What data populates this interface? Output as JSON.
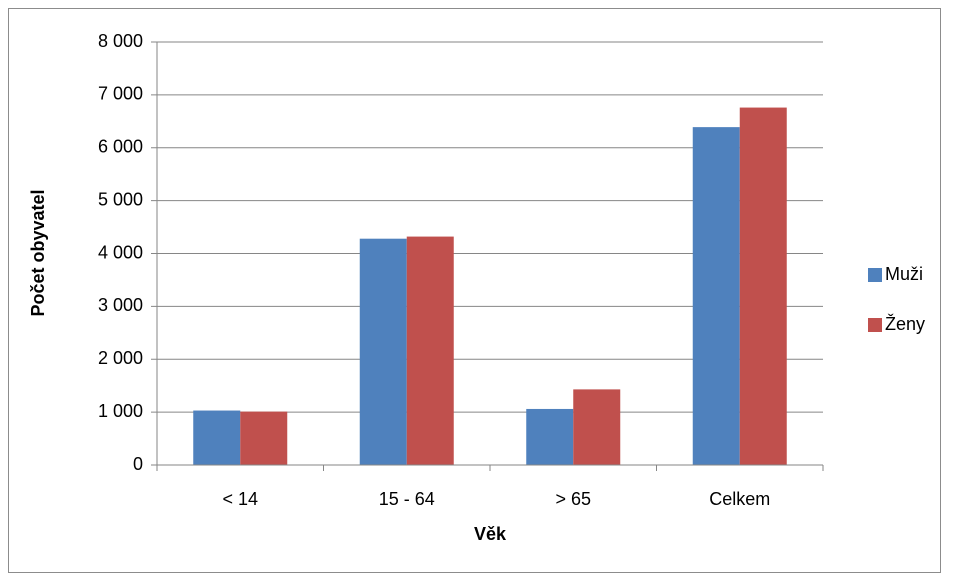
{
  "chart_data": {
    "type": "bar",
    "categories": [
      "< 14",
      "15 - 64",
      "> 65",
      "Celkem"
    ],
    "series": [
      {
        "name": "Muži",
        "values": [
          1030,
          4280,
          1060,
          6390
        ],
        "color": "#4f81bd"
      },
      {
        "name": "Ženy",
        "values": [
          1010,
          4320,
          1430,
          6760
        ],
        "color": "#c0504d"
      }
    ],
    "y_ticks": [
      "0",
      "1 000",
      "2 000",
      "3 000",
      "4 000",
      "5 000",
      "6 000",
      "7 000",
      "8 000"
    ],
    "ylim": [
      0,
      8000
    ],
    "ylabel": "Počet obyvatel",
    "xlabel": "Věk",
    "grid": true,
    "legend_position": "right",
    "colors": {
      "gridline": "#868686",
      "axis": "#868686",
      "frame": "#8c8c8c"
    }
  }
}
